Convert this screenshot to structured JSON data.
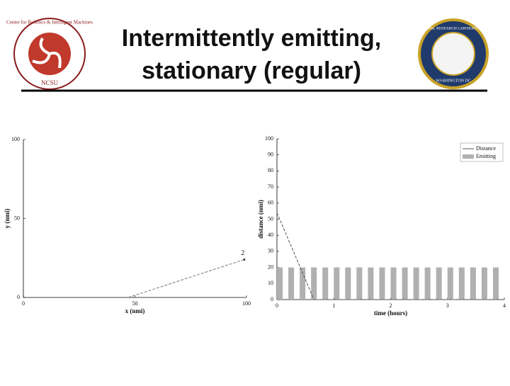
{
  "title": [
    "Intermittently emitting,",
    "stationary (regular)"
  ],
  "logos": {
    "left": {
      "ring": "Center for Robotics & Intelligent Machines",
      "bottom": "NCSU"
    },
    "right": {
      "ring": "NAVAL RESEARCH LABORATORY",
      "bottom": "WASHINGTON DC"
    }
  },
  "chart_data": [
    {
      "type": "line",
      "xlabel": "x (nmi)",
      "ylabel": "y (nmi)",
      "xlim": [
        0,
        100
      ],
      "ylim": [
        0,
        100
      ],
      "xticks": [
        0,
        50,
        100
      ],
      "yticks": [
        0,
        50,
        100
      ],
      "series": [
        {
          "x": [
            47,
            99
          ],
          "values": [
            0,
            24
          ],
          "color": "#777",
          "type": "line"
        }
      ],
      "annotations": [
        {
          "text": "2"
        }
      ]
    },
    {
      "type": "combo",
      "xlabel": "time (hours)",
      "ylabel": "distance (nmi)",
      "xlim": [
        0,
        4
      ],
      "ylim": [
        0,
        100
      ],
      "xticks": [
        0,
        1,
        2,
        3,
        4
      ],
      "yticks": [
        0,
        10,
        20,
        30,
        40,
        50,
        60,
        70,
        80,
        90,
        100
      ],
      "legend": "upper right",
      "bar_width": 0.1,
      "series": [
        {
          "name": "Distance",
          "type": "line",
          "color": "#555",
          "x": [
            0,
            0.65,
            4
          ],
          "values": [
            54,
            0,
            0
          ]
        },
        {
          "name": "Emitting",
          "type": "bar",
          "color": "#b0b0b0",
          "x": [
            0,
            0.2,
            0.4,
            0.6,
            0.8,
            1.0,
            1.2,
            1.4,
            1.6,
            1.8,
            2.0,
            2.2,
            2.4,
            2.6,
            2.8,
            3.0,
            3.2,
            3.4,
            3.6,
            3.8
          ],
          "values": [
            20,
            20,
            20,
            20,
            20,
            20,
            20,
            20,
            20,
            20,
            20,
            20,
            20,
            20,
            20,
            20,
            20,
            20,
            20,
            20
          ]
        }
      ]
    }
  ]
}
